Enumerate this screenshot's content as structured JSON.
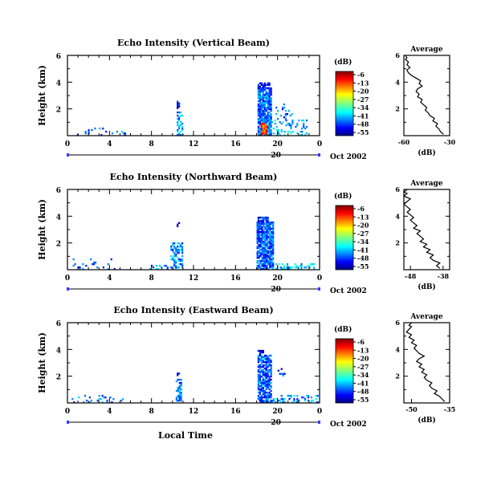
{
  "chart_data": [
    {
      "type": "heatmap",
      "title": "Echo Intensity (Vertical Beam)",
      "ylabel": "Height (km)",
      "xlim": [
        0,
        24
      ],
      "ylim": [
        0,
        6
      ],
      "x_ticks": [
        "0",
        "4",
        "8",
        "12",
        "16",
        "20",
        "0"
      ],
      "y_ticks": [
        "2",
        "4",
        "6"
      ],
      "date_tick": "20",
      "date_label": "Oct 2002",
      "colorbar": {
        "label": "(dB)",
        "ticks": [
          "-6",
          "-13",
          "-20",
          "-27",
          "-34",
          "-41",
          "-48",
          "-55"
        ],
        "range": [
          -55,
          -6
        ]
      },
      "echo_regions": [
        {
          "t0": 0.3,
          "t1": 3.8,
          "h0": 0.0,
          "h1": 0.6,
          "density": 0.15,
          "level": -45
        },
        {
          "t0": 4.2,
          "t1": 5.8,
          "h0": 0.0,
          "h1": 0.3,
          "density": 0.2,
          "level": -43
        },
        {
          "t0": 10.4,
          "t1": 10.9,
          "h0": 0.0,
          "h1": 1.8,
          "density": 0.55,
          "level": -42
        },
        {
          "t0": 10.4,
          "t1": 10.6,
          "h0": 2.0,
          "h1": 2.5,
          "density": 0.5,
          "level": -48
        },
        {
          "t0": 18.1,
          "t1": 19.4,
          "h0": 0.0,
          "h1": 3.5,
          "density": 0.85,
          "level": -44
        },
        {
          "t0": 18.1,
          "t1": 19.2,
          "h0": 3.5,
          "h1": 3.9,
          "density": 0.5,
          "level": -48
        },
        {
          "t0": 18.4,
          "t1": 18.9,
          "h0": 0.0,
          "h1": 0.9,
          "density": 0.9,
          "level": -15
        },
        {
          "t0": 19.4,
          "t1": 22.8,
          "h0": 0.0,
          "h1": 1.2,
          "density": 0.25,
          "level": -40
        },
        {
          "t0": 19.8,
          "t1": 21.5,
          "h0": 1.2,
          "h1": 2.3,
          "density": 0.1,
          "level": -45
        }
      ],
      "side_profile": {
        "title": "Average",
        "xlabel": "(dB)",
        "x_ticks": [
          "-60",
          "-30"
        ],
        "xlim": [
          -60,
          -30
        ],
        "ylim": [
          0,
          6
        ],
        "y_ticks": [
          "2",
          "4",
          "6"
        ],
        "x": [
          -34,
          -36,
          -37,
          -39,
          -38,
          -41,
          -40,
          -43,
          -44,
          -46,
          -45,
          -47,
          -49,
          -48,
          -51,
          -50,
          -52,
          -51,
          -48,
          -50,
          -49,
          -52,
          -55,
          -57,
          -58,
          -56,
          -58,
          -57,
          -59,
          -58,
          -59
        ],
        "y": [
          0.1,
          0.3,
          0.5,
          0.7,
          0.9,
          1.1,
          1.3,
          1.5,
          1.7,
          1.9,
          2.1,
          2.3,
          2.5,
          2.7,
          2.9,
          3.1,
          3.3,
          3.5,
          3.7,
          3.9,
          4.1,
          4.3,
          4.5,
          4.7,
          4.9,
          5.1,
          5.3,
          5.5,
          5.7,
          5.8,
          6.0
        ]
      }
    },
    {
      "type": "heatmap",
      "title": "Echo Intensity (Northward Beam)",
      "ylabel": "Height (km)",
      "xlim": [
        0,
        24
      ],
      "ylim": [
        0,
        6
      ],
      "x_ticks": [
        "0",
        "4",
        "8",
        "12",
        "16",
        "20",
        "0"
      ],
      "y_ticks": [
        "2",
        "4",
        "6"
      ],
      "date_tick": "20",
      "date_label": "Oct 2002",
      "colorbar": {
        "label": "(dB)",
        "ticks": [
          "-6",
          "-13",
          "-20",
          "-27",
          "-34",
          "-41",
          "-48",
          "-55"
        ],
        "range": [
          -55,
          -6
        ]
      },
      "echo_regions": [
        {
          "t0": 0.5,
          "t1": 4.5,
          "h0": 0.0,
          "h1": 0.8,
          "density": 0.12,
          "level": -44
        },
        {
          "t0": 7.8,
          "t1": 9.5,
          "h0": 0.0,
          "h1": 0.3,
          "density": 0.2,
          "level": -42
        },
        {
          "t0": 9.8,
          "t1": 10.9,
          "h0": 0.0,
          "h1": 2.0,
          "density": 0.5,
          "level": -42
        },
        {
          "t0": 10.4,
          "t1": 10.6,
          "h0": 3.2,
          "h1": 3.5,
          "density": 0.6,
          "level": -50
        },
        {
          "t0": 18.0,
          "t1": 19.6,
          "h0": 0.0,
          "h1": 3.6,
          "density": 0.85,
          "level": -45
        },
        {
          "t0": 18.1,
          "t1": 19.0,
          "h0": 3.6,
          "h1": 3.9,
          "density": 0.6,
          "level": -49
        },
        {
          "t0": 19.5,
          "t1": 23.5,
          "h0": 0.0,
          "h1": 0.4,
          "density": 0.4,
          "level": -40
        }
      ],
      "side_profile": {
        "title": "Average",
        "xlabel": "(dB)",
        "x_ticks": [
          "-48",
          "-38"
        ],
        "xlim": [
          -50,
          -36
        ],
        "ylim": [
          0,
          6
        ],
        "y_ticks": [
          "2",
          "4",
          "6"
        ],
        "x": [
          -39,
          -40,
          -39,
          -41,
          -42,
          -41,
          -43,
          -42,
          -44,
          -43,
          -45,
          -44,
          -45,
          -46,
          -45,
          -47,
          -46,
          -47,
          -48,
          -47,
          -48,
          -49,
          -48,
          -49,
          -50,
          -49,
          -48,
          -50,
          -49,
          -50,
          -49
        ],
        "y": [
          0.1,
          0.3,
          0.5,
          0.7,
          0.9,
          1.1,
          1.3,
          1.5,
          1.7,
          1.9,
          2.1,
          2.3,
          2.5,
          2.7,
          2.9,
          3.1,
          3.3,
          3.5,
          3.7,
          3.9,
          4.1,
          4.3,
          4.5,
          4.7,
          4.9,
          5.1,
          5.3,
          5.5,
          5.7,
          5.8,
          6.0
        ]
      }
    },
    {
      "type": "heatmap",
      "title": "Echo Intensity (Eastward Beam)",
      "ylabel": "Height (km)",
      "xlabel": "Local Time",
      "xlim": [
        0,
        24
      ],
      "ylim": [
        0,
        6
      ],
      "x_ticks": [
        "0",
        "4",
        "8",
        "12",
        "16",
        "20",
        "0"
      ],
      "y_ticks": [
        "2",
        "4",
        "6"
      ],
      "date_tick": "20",
      "date_label": "Oct 2002",
      "colorbar": {
        "label": "(dB)",
        "ticks": [
          "-6",
          "-13",
          "-20",
          "-27",
          "-34",
          "-41",
          "-48",
          "-55"
        ],
        "range": [
          -55,
          -6
        ]
      },
      "echo_regions": [
        {
          "t0": 0.4,
          "t1": 5.5,
          "h0": 0.0,
          "h1": 0.6,
          "density": 0.15,
          "level": -44
        },
        {
          "t0": 10.3,
          "t1": 10.9,
          "h0": 0.0,
          "h1": 1.8,
          "density": 0.5,
          "level": -43
        },
        {
          "t0": 10.4,
          "t1": 10.6,
          "h0": 1.9,
          "h1": 2.2,
          "density": 0.5,
          "level": -48
        },
        {
          "t0": 18.1,
          "t1": 19.3,
          "h0": 0.0,
          "h1": 3.6,
          "density": 0.75,
          "level": -45
        },
        {
          "t0": 18.1,
          "t1": 19.0,
          "h0": 3.6,
          "h1": 3.9,
          "density": 0.5,
          "level": -50
        },
        {
          "t0": 19.4,
          "t1": 23.8,
          "h0": 0.0,
          "h1": 0.5,
          "density": 0.3,
          "level": -42
        },
        {
          "t0": 20.0,
          "t1": 20.6,
          "h0": 2.0,
          "h1": 2.6,
          "density": 0.3,
          "level": -47
        }
      ],
      "side_profile": {
        "title": "Average",
        "xlabel": "(dB)",
        "x_ticks": [
          "-50",
          "-35"
        ],
        "xlim": [
          -53,
          -35
        ],
        "ylim": [
          0,
          6
        ],
        "y_ticks": [
          "2",
          "4",
          "6"
        ],
        "x": [
          -37,
          -38,
          -39,
          -41,
          -40,
          -42,
          -43,
          -42,
          -44,
          -45,
          -44,
          -46,
          -45,
          -47,
          -46,
          -48,
          -47,
          -45,
          -47,
          -48,
          -49,
          -48,
          -50,
          -49,
          -51,
          -50,
          -52,
          -51,
          -50,
          -51,
          -50
        ],
        "y": [
          0.1,
          0.3,
          0.5,
          0.7,
          0.9,
          1.1,
          1.3,
          1.5,
          1.7,
          1.9,
          2.1,
          2.3,
          2.5,
          2.7,
          2.9,
          3.1,
          3.3,
          3.5,
          3.7,
          3.9,
          4.1,
          4.3,
          4.5,
          4.7,
          4.9,
          5.1,
          5.3,
          5.5,
          5.7,
          5.8,
          6.0
        ]
      }
    }
  ]
}
